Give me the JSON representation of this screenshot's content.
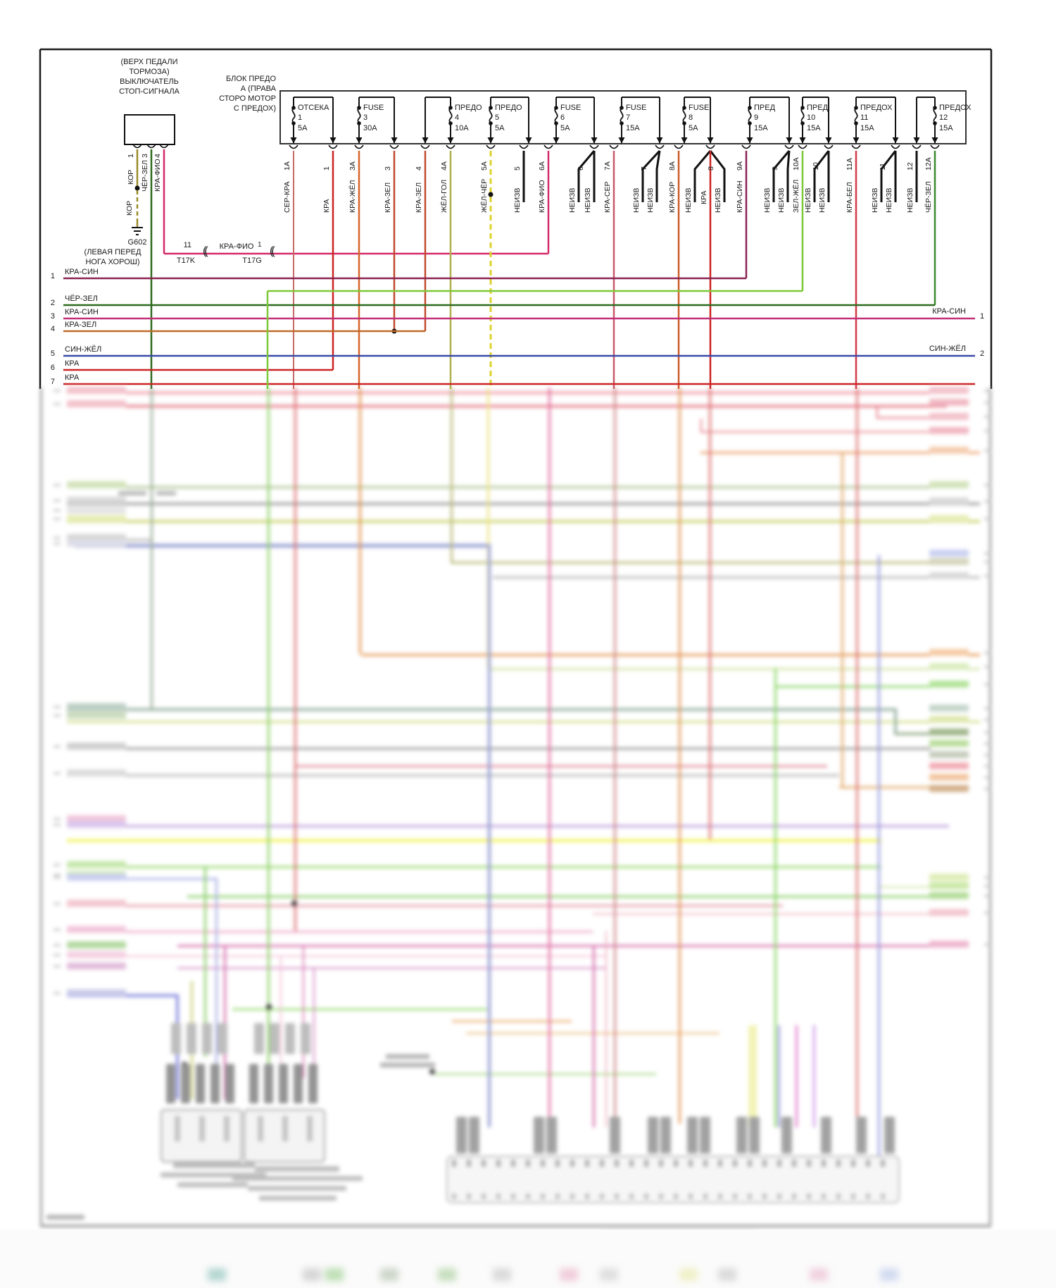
{
  "colors": {
    "kor": "#9b8b2a",
    "cher_zel": "#2e6b1e",
    "kra_fio": "#d42a6a",
    "kra_sin_dark": "#8a2252",
    "kra_sin": "#c2307a",
    "kra_zel": "#c06a28",
    "sin_zhel": "#3a4aa8",
    "kra": "#cc2424",
    "ser_kra": "#c96a6a",
    "kra_zhel": "#d4662a",
    "zhel_gol": "#b0b050",
    "zhel_cher": "#ddd32f",
    "neizv": "#111111",
    "kra_ser": "#c85a6a",
    "kra_kor": "#cc5a2a",
    "zel_zhel": "#7ec837",
    "kra_bel": "#d43a4a",
    "cher_zel12": "#3a8b2e",
    "kra_zel_w": "#c24a2e",
    "frame": "#1a1a1a"
  },
  "diagram": {
    "stop_switch": {
      "label_lines": [
        "(ВЕРХ ПЕДАЛИ",
        "ТОРМОЗА)",
        "ВЫКЛЮЧАТЕЛЬ",
        "СТОП-СИГНАЛА"
      ],
      "pins": [
        {
          "n": "1",
          "wire": "КОР"
        },
        {
          "n": "3",
          "wire": "ЧЁР-ЗЕЛ"
        },
        {
          "n": "4",
          "wire": "КРА-ФИО"
        }
      ],
      "kor_segment_label": "КОР"
    },
    "ground": {
      "id": "G602",
      "note_lines": [
        "(ЛЕВАЯ ПЕРЕД",
        "НОГА ХОРОШ)"
      ]
    },
    "splice": {
      "left_pin": "11",
      "left_id": "T17K",
      "wire": "КРА-ФИО",
      "right_pin": "1",
      "right_id": "T17G",
      "symbol": "(("
    },
    "fuse_block": {
      "label_lines": [
        "БЛОК ПРЕДО",
        "А (ПРАВА",
        "СТОРО МОТОР",
        "С ПРЕДОХ)"
      ],
      "fuses": [
        {
          "name": "ОТСЕКА",
          "pin": "1",
          "amp": "5А"
        },
        {
          "name": "FUSE",
          "pin": "3",
          "amp": "30А"
        },
        {
          "name": "ПРЕДО",
          "pin": "4",
          "amp": "10А"
        },
        {
          "name": "ПРЕДО",
          "pin": "5",
          "amp": "5А"
        },
        {
          "name": "FUSE",
          "pin": "6",
          "amp": "5А"
        },
        {
          "name": "FUSE",
          "pin": "7",
          "amp": "15А"
        },
        {
          "name": "FUSE",
          "pin": "8",
          "amp": "5А"
        },
        {
          "name": "ПРЕД",
          "pin": "9",
          "amp": "15А"
        },
        {
          "name": "ПРЕД",
          "pin": "10",
          "amp": "15А"
        },
        {
          "name": "ПРЕДОХ",
          "pin": "11",
          "amp": "15А"
        },
        {
          "name": "ПРЕДОХ",
          "pin": "12",
          "amp": "15А"
        }
      ]
    },
    "fuse_outputs": [
      {
        "wire": "СЕР-КРА",
        "pin": "1А"
      },
      {
        "wire": "КРА",
        "pin": "1"
      },
      {
        "wire": "КРА-ЖЁЛ",
        "pin": "3А"
      },
      {
        "wire": "КРА-ЗЕЛ",
        "pin": "3"
      },
      {
        "wire": "КРА-ЗЕЛ",
        "pin": "4"
      },
      {
        "wire": "ЖЁЛ-ГОЛ",
        "pin": "4А"
      },
      {
        "wire": "ЖЁЛ-ЧЁР",
        "pin": "5А"
      },
      {
        "wire": "НЕИЗВ",
        "pin": "5"
      },
      {
        "wire": "КРА-ФИО",
        "pin": "6А"
      },
      {
        "wires": [
          "НЕИЗВ",
          "НЕИЗВ"
        ],
        "pin": "6"
      },
      {
        "wire": "КРА-СЕР",
        "pin": "7А"
      },
      {
        "wires": [
          "НЕИЗВ",
          "НЕИЗВ"
        ],
        "pin": "7"
      },
      {
        "wire": "КРА-КОР",
        "pin": "8А"
      },
      {
        "wires": [
          "НЕИЗВ",
          "КРА",
          "НЕИЗВ"
        ],
        "pin": "8"
      },
      {
        "wire": "КРА-СИН",
        "pin": "9А"
      },
      {
        "wires": [
          "НЕИЗВ",
          "НЕИЗВ"
        ],
        "pin": "9"
      },
      {
        "wire": "ЗЕЛ-ЖЁЛ",
        "pin": "10А"
      },
      {
        "wires": [
          "НЕИЗВ",
          "НЕИЗВ"
        ],
        "pin": "10"
      },
      {
        "wire": "КРА-БЕЛ",
        "pin": "11А"
      },
      {
        "wires": [
          "НЕИЗВ",
          "НЕИЗВ"
        ],
        "pin": "11"
      },
      {
        "wire": "НЕИЗВ",
        "pin": "12"
      },
      {
        "wire": "ЧЁР-ЗЕЛ",
        "pin": "12А"
      }
    ],
    "left_wires": [
      {
        "n": "1",
        "label": "КРА-СИН"
      },
      {
        "n": "2",
        "label": "ЧЁР-ЗЕЛ"
      },
      {
        "n": "3",
        "label": "КРА-СИН"
      },
      {
        "n": "4",
        "label": "КРА-ЗЕЛ"
      },
      {
        "n": "5",
        "label": "СИН-ЖЁЛ"
      },
      {
        "n": "6",
        "label": "КРА"
      },
      {
        "n": "7",
        "label": "КРА"
      }
    ],
    "right_exits": [
      {
        "label": "КРА-СИН",
        "n": "1"
      },
      {
        "label": "СИН-ЖЁЛ",
        "n": "2"
      }
    ]
  }
}
